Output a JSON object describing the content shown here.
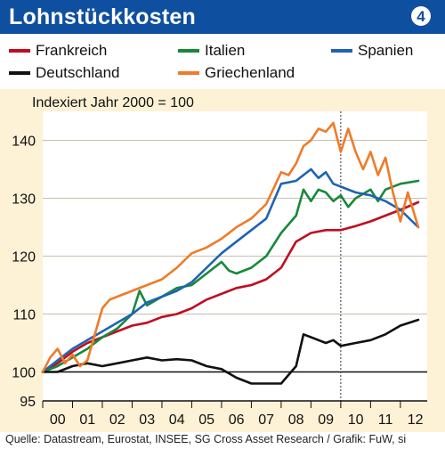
{
  "header": {
    "title": "Lohnstückkosten",
    "badge": "4"
  },
  "legend": [
    {
      "name": "Frankreich",
      "color": "#c00d20"
    },
    {
      "name": "Italien",
      "color": "#17893a"
    },
    {
      "name": "Spanien",
      "color": "#1f63b3"
    },
    {
      "name": "Deutschland",
      "color": "#111111"
    },
    {
      "name": "Griechenland",
      "color": "#ef7b28"
    }
  ],
  "source": "Quelle: Datastream, Eurostat, INSEE, SG Cross Asset Research / Grafik: FuW, si",
  "chart_data": {
    "type": "line",
    "subtitle": "Indexiert Jahr 2000 = 100",
    "ylim": [
      95,
      145
    ],
    "yticks": [
      95,
      100,
      110,
      120,
      130,
      140
    ],
    "xlim": [
      2000,
      2012.9
    ],
    "xtick_labels": [
      "00",
      "01",
      "02",
      "03",
      "04",
      "05",
      "06",
      "07",
      "08",
      "09",
      "10",
      "11",
      "12"
    ],
    "reference_line": 100,
    "grid": "horizontal",
    "highlight_year": "09",
    "series": [
      {
        "name": "Frankreich",
        "color": "#c00d20",
        "x": [
          2000,
          2000.5,
          2001,
          2001.5,
          2002,
          2002.5,
          2003,
          2003.5,
          2004,
          2004.5,
          2005,
          2005.5,
          2006,
          2006.5,
          2007,
          2007.5,
          2008,
          2008.5,
          2009,
          2009.5,
          2010,
          2010.5,
          2011,
          2011.5,
          2012,
          2012.6
        ],
        "y": [
          100,
          101.5,
          103.5,
          105,
          106,
          107,
          108,
          108.5,
          109.5,
          110,
          111,
          112.5,
          113.5,
          114.5,
          115,
          116,
          118,
          122.5,
          124,
          124.5,
          124.5,
          125.2,
          126,
          127,
          128,
          129.3
        ]
      },
      {
        "name": "Italien",
        "color": "#17893a",
        "x": [
          2000,
          2000.5,
          2001,
          2001.5,
          2002,
          2002.5,
          2003,
          2003.25,
          2003.5,
          2004,
          2004.5,
          2005,
          2005.5,
          2006,
          2006.25,
          2006.5,
          2007,
          2007.5,
          2008,
          2008.5,
          2008.75,
          2009,
          2009.25,
          2009.5,
          2009.75,
          2010,
          2010.25,
          2010.5,
          2011,
          2011.25,
          2011.5,
          2012,
          2012.6
        ],
        "y": [
          100,
          101,
          102.5,
          104,
          106,
          107.5,
          110,
          114,
          111.5,
          113,
          114.5,
          115,
          117,
          119,
          117.5,
          117,
          118,
          120,
          124,
          127,
          131.5,
          129.5,
          131.5,
          131,
          129.5,
          130.5,
          128.5,
          130,
          131.5,
          129.5,
          131.5,
          132.5,
          133
        ]
      },
      {
        "name": "Spanien",
        "color": "#1f63b3",
        "x": [
          2000,
          2000.5,
          2001,
          2001.5,
          2002,
          2002.5,
          2003,
          2003.5,
          2004,
          2004.5,
          2005,
          2005.5,
          2006,
          2006.5,
          2007,
          2007.5,
          2008,
          2008.5,
          2008.75,
          2009,
          2009.25,
          2009.5,
          2009.75,
          2010,
          2010.5,
          2011,
          2011.5,
          2012,
          2012.2,
          2012.6
        ],
        "y": [
          100,
          102,
          104,
          105.5,
          107,
          108.5,
          110,
          112,
          113,
          114,
          115.5,
          118,
          120.5,
          122.5,
          124.5,
          126.5,
          132.5,
          133,
          134,
          135,
          133.5,
          134.5,
          132.5,
          132,
          131,
          130.5,
          129.5,
          128,
          127,
          125
        ]
      },
      {
        "name": "Deutschland",
        "color": "#111111",
        "x": [
          2000,
          2000.5,
          2001,
          2001.5,
          2002,
          2002.5,
          2003,
          2003.5,
          2004,
          2004.5,
          2005,
          2005.5,
          2006,
          2006.5,
          2007,
          2007.5,
          2008,
          2008.5,
          2008.75,
          2009,
          2009.5,
          2009.75,
          2010,
          2010.5,
          2011,
          2011.5,
          2012,
          2012.6
        ],
        "y": [
          100,
          100,
          101,
          101.5,
          101,
          101.5,
          102,
          102.5,
          102,
          102.2,
          102,
          101,
          100.5,
          99,
          98,
          98,
          98,
          101,
          106.5,
          106,
          105,
          105.5,
          104.5,
          105,
          105.5,
          106.5,
          108,
          109
        ]
      },
      {
        "name": "Griechenland",
        "color": "#ef7b28",
        "x": [
          2000,
          2000.25,
          2000.5,
          2000.75,
          2001,
          2001.25,
          2001.5,
          2002,
          2002.25,
          2002.5,
          2003,
          2003.5,
          2004,
          2004.5,
          2005,
          2005.5,
          2006,
          2006.5,
          2007,
          2007.5,
          2008,
          2008.25,
          2008.5,
          2008.75,
          2009,
          2009.25,
          2009.5,
          2009.75,
          2010,
          2010.25,
          2010.5,
          2010.75,
          2011,
          2011.25,
          2011.5,
          2011.75,
          2012,
          2012.25,
          2012.6
        ],
        "y": [
          100,
          102.5,
          104,
          101.5,
          103,
          101,
          102,
          111,
          112.5,
          113,
          114,
          115,
          116,
          118,
          120.5,
          121.5,
          123,
          125,
          126.5,
          129,
          134.5,
          134,
          136,
          139,
          140,
          142,
          141.5,
          143,
          138,
          142,
          138,
          135,
          138,
          134,
          137,
          131,
          126,
          131,
          125
        ]
      }
    ]
  }
}
